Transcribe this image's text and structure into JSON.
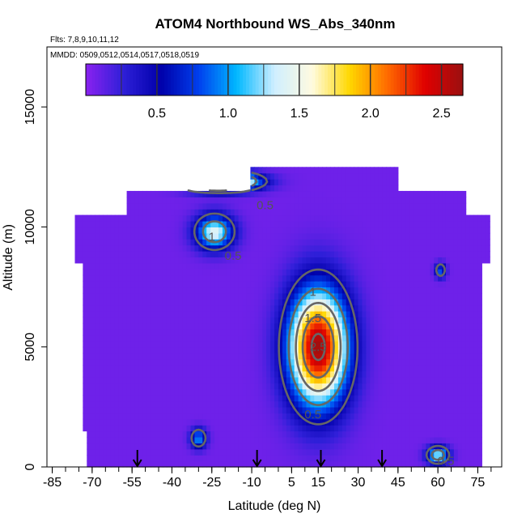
{
  "chart_data": {
    "type": "heatmap",
    "title": "ATOM4 Northbound WS_Abs_340nm",
    "flights_label": "Flts: 7,8,9,10,11,12",
    "dates_label": "MMDD: 0509,0512,0514,0517,0518,0519",
    "xlabel": "Latitude (deg N)",
    "ylabel": "Altitude (m)",
    "xlim": [
      -87,
      84
    ],
    "ylim": [
      0,
      17500
    ],
    "x_ticks": [
      -85,
      -70,
      -55,
      -40,
      -25,
      -10,
      5,
      15,
      30,
      45,
      60,
      75
    ],
    "x_tick_labels": [
      "-85",
      "-70",
      "-55",
      "-40",
      "-25",
      "-10",
      "5",
      "15",
      "30",
      "45",
      "60",
      "75"
    ],
    "y_ticks": [
      0,
      5000,
      10000,
      15000
    ],
    "y_tick_labels": [
      "0",
      "5000",
      "10000",
      "15000"
    ],
    "colorbar": {
      "min": 0.0,
      "max": 2.65,
      "ticks": [
        0.5,
        1.0,
        1.5,
        2.0,
        2.5
      ],
      "tick_labels": [
        "0.5",
        "1.0",
        "1.5",
        "2.0",
        "2.5"
      ],
      "colors": [
        "#8a22f0",
        "#2e1fd8",
        "#0000aa",
        "#0040ee",
        "#00b8ff",
        "#cfeeff",
        "#fffbe0",
        "#ffd700",
        "#ff6a00",
        "#e00000",
        "#9a1010"
      ]
    },
    "background_value": 0.08,
    "data_extent": [
      {
        "lat_min": -72,
        "lat_max": 76,
        "alt_min": 0,
        "alt_max": 1600
      },
      {
        "lat_min": -74,
        "lat_max": 77,
        "alt_min": 1600,
        "alt_max": 8400
      },
      {
        "lat_min": -77,
        "lat_max": 80,
        "alt_min": 8400,
        "alt_max": 10500
      },
      {
        "lat_min": -57,
        "lat_max": 70,
        "alt_min": 10500,
        "alt_max": 11600
      },
      {
        "lat_min": -10,
        "lat_max": 45,
        "alt_min": 11600,
        "alt_max": 12400
      }
    ],
    "features": [
      {
        "lat": 15,
        "alt": 5000,
        "lat_width": 11,
        "alt_width": 2400,
        "peak": 2.55
      },
      {
        "lat": -20,
        "alt": 11900,
        "lat_width": 12,
        "alt_width": 350,
        "peak": 2.3
      },
      {
        "lat": -27,
        "alt": 11900,
        "lat_width": 10,
        "alt_width": 300,
        "peak": 1.8
      },
      {
        "lat": -24,
        "alt": 9800,
        "lat_width": 7,
        "alt_width": 700,
        "peak": 1.35
      },
      {
        "lat": 60,
        "alt": 500,
        "lat_width": 4,
        "alt_width": 350,
        "peak": 1.3
      },
      {
        "lat": -30,
        "alt": 1200,
        "lat_width": 3,
        "alt_width": 400,
        "peak": 0.9
      },
      {
        "lat": 61,
        "alt": 8200,
        "lat_width": 2,
        "alt_width": 300,
        "peak": 0.8
      }
    ],
    "contours": [
      {
        "level": 0.5,
        "label": "0.5"
      },
      {
        "level": 1.0,
        "label": "1"
      },
      {
        "level": 1.5,
        "label": "1.5"
      },
      {
        "level": 2.0,
        "label": "2"
      },
      {
        "level": 2.5,
        "label": "2.5"
      }
    ],
    "contour_labels": [
      {
        "text": "1",
        "lat": 13,
        "alt": 7300
      },
      {
        "text": "1.5",
        "lat": 13,
        "alt": 6200
      },
      {
        "text": "2.5",
        "lat": 15,
        "alt": 5000
      },
      {
        "text": "0.5",
        "lat": 13,
        "alt": 2200
      },
      {
        "text": "1",
        "lat": -25,
        "alt": 9600
      },
      {
        "text": "0.5",
        "lat": -17,
        "alt": 8800
      },
      {
        "text": "0.5",
        "lat": -5,
        "alt": 10900
      },
      {
        "text": "0.5",
        "lat": 63,
        "alt": 250
      }
    ],
    "flight_markers_lat": [
      -53,
      -8,
      16,
      39
    ]
  }
}
